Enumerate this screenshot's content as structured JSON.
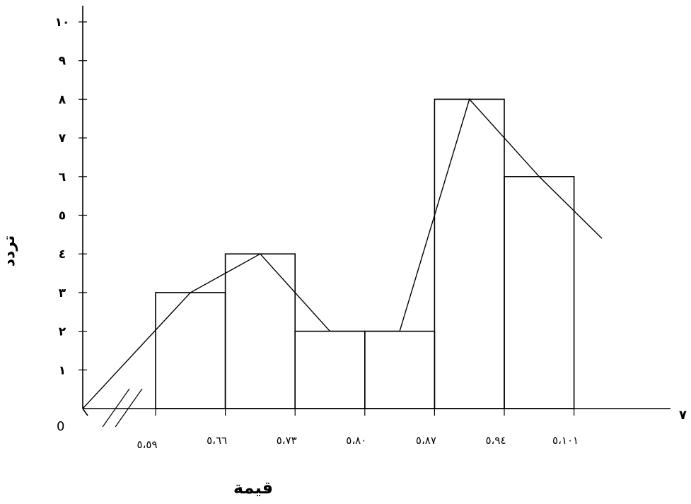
{
  "chart_data": {
    "type": "bar",
    "subtype": "histogram-with-frequency-polygon",
    "ylabel": "تردد",
    "xlabel": "قيمة",
    "origin_label": "0",
    "edge_label": "٧",
    "ylim": [
      0,
      10
    ],
    "y_ticks": [
      {
        "value": 1,
        "label": "١"
      },
      {
        "value": 2,
        "label": "٢"
      },
      {
        "value": 3,
        "label": "٣"
      },
      {
        "value": 4,
        "label": "٤"
      },
      {
        "value": 5,
        "label": "٥"
      },
      {
        "value": 6,
        "label": "٦"
      },
      {
        "value": 7,
        "label": "٧"
      },
      {
        "value": 8,
        "label": "٨"
      },
      {
        "value": 9,
        "label": "٩"
      },
      {
        "value": 10,
        "label": "١٠"
      }
    ],
    "x_tick_labels": [
      "٥،٥٩",
      "٥،٦٦",
      "٥،٧٣",
      "٥،٨٠",
      "٥،٨٧",
      "٥،٩٤",
      "٥،١٠١"
    ],
    "bins": [
      {
        "from": "٥،٥٩",
        "to": "٥،٦٦",
        "value": 3
      },
      {
        "from": "٥،٦٦",
        "to": "٥،٧٣",
        "value": 4
      },
      {
        "from": "٥،٧٣",
        "to": "٥،٨٠",
        "value": 2
      },
      {
        "from": "٥،٨٠",
        "to": "٥،٨٧",
        "value": 2
      },
      {
        "from": "٥،٨٧",
        "to": "٥،٩٤",
        "value": 8
      },
      {
        "from": "٥،٩٤",
        "to": "٥،١٠١",
        "value": 6
      }
    ],
    "polygon_values": [
      0,
      3,
      4,
      2,
      2,
      8,
      6,
      4.4
    ],
    "axis_break": true,
    "legend": "none",
    "grid": false
  }
}
